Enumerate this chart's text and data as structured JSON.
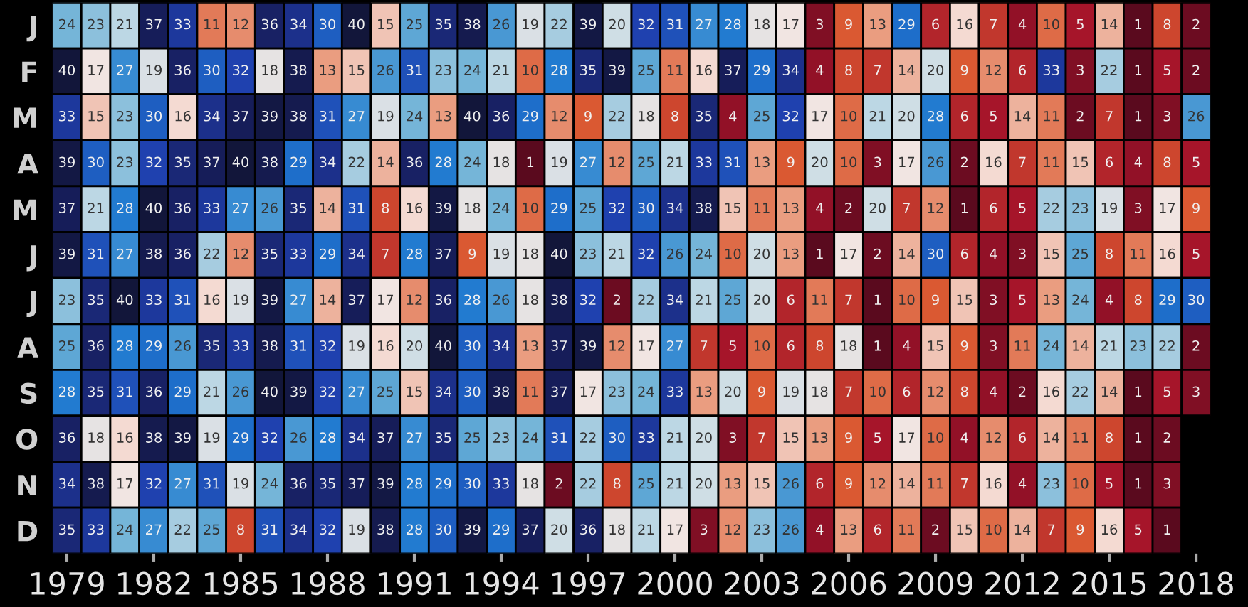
{
  "chart_data": {
    "type": "heatmap",
    "categories": [
      "1979",
      null,
      null,
      "1982",
      null,
      null,
      "1985",
      null,
      null,
      "1988",
      null,
      null,
      "1991",
      null,
      null,
      "1994",
      null,
      null,
      "1997",
      null,
      null,
      "2000",
      null,
      null,
      "2003",
      null,
      null,
      "2006",
      null,
      null,
      "2009",
      null,
      null,
      "2012",
      null,
      null,
      "2015",
      null,
      null,
      "2018"
    ],
    "y_categories": [
      "J",
      "F",
      "M",
      "A",
      "M",
      "J",
      "J",
      "A",
      "S",
      "O",
      "N",
      "D"
    ],
    "cells": [
      [
        24,
        23,
        21,
        37,
        33,
        11,
        12,
        36,
        34,
        30,
        40,
        15,
        25,
        35,
        38,
        26,
        19,
        22,
        39,
        20,
        32,
        31,
        27,
        28,
        18,
        17,
        3,
        9,
        13,
        29,
        6,
        16,
        7,
        4,
        10,
        5,
        14,
        1,
        8,
        2
      ],
      [
        40,
        17,
        27,
        19,
        36,
        30,
        32,
        18,
        38,
        13,
        15,
        26,
        31,
        23,
        24,
        21,
        10,
        28,
        35,
        39,
        25,
        11,
        16,
        37,
        29,
        34,
        4,
        8,
        7,
        14,
        20,
        9,
        12,
        6,
        33,
        3,
        22,
        1,
        5,
        2
      ],
      [
        33,
        15,
        23,
        30,
        16,
        34,
        37,
        39,
        38,
        31,
        27,
        19,
        24,
        13,
        40,
        36,
        29,
        12,
        9,
        22,
        18,
        8,
        35,
        4,
        25,
        32,
        17,
        10,
        21,
        20,
        28,
        6,
        5,
        14,
        11,
        2,
        7,
        1,
        3,
        26
      ],
      [
        39,
        30,
        23,
        32,
        35,
        37,
        40,
        38,
        29,
        34,
        22,
        14,
        36,
        28,
        24,
        18,
        1,
        19,
        27,
        12,
        25,
        21,
        33,
        31,
        13,
        9,
        20,
        10,
        3,
        17,
        26,
        2,
        16,
        7,
        11,
        15,
        6,
        4,
        8,
        5
      ],
      [
        37,
        21,
        28,
        40,
        36,
        33,
        27,
        26,
        35,
        14,
        31,
        8,
        16,
        39,
        18,
        24,
        10,
        29,
        25,
        32,
        30,
        34,
        38,
        15,
        11,
        13,
        4,
        2,
        20,
        7,
        12,
        1,
        6,
        5,
        22,
        23,
        19,
        3,
        17,
        9
      ],
      [
        39,
        31,
        27,
        38,
        36,
        22,
        12,
        35,
        33,
        29,
        34,
        7,
        28,
        37,
        9,
        19,
        18,
        40,
        23,
        21,
        32,
        26,
        24,
        10,
        20,
        13,
        1,
        17,
        2,
        14,
        30,
        6,
        4,
        3,
        15,
        25,
        8,
        11,
        16,
        5
      ],
      [
        23,
        35,
        40,
        33,
        31,
        16,
        19,
        39,
        27,
        14,
        37,
        17,
        12,
        36,
        28,
        26,
        18,
        38,
        32,
        2,
        22,
        34,
        21,
        25,
        20,
        6,
        11,
        7,
        1,
        10,
        9,
        15,
        3,
        5,
        13,
        24,
        4,
        8,
        29,
        30
      ],
      [
        25,
        36,
        28,
        29,
        26,
        35,
        33,
        38,
        31,
        32,
        19,
        16,
        20,
        40,
        30,
        34,
        13,
        37,
        39,
        12,
        17,
        27,
        7,
        5,
        10,
        6,
        8,
        18,
        1,
        4,
        15,
        9,
        3,
        11,
        24,
        14,
        21,
        23,
        22,
        2
      ],
      [
        28,
        35,
        31,
        36,
        29,
        21,
        26,
        40,
        39,
        32,
        27,
        25,
        15,
        34,
        30,
        38,
        11,
        37,
        17,
        23,
        24,
        33,
        13,
        20,
        9,
        19,
        18,
        7,
        10,
        6,
        12,
        8,
        4,
        2,
        16,
        22,
        14,
        1,
        5,
        3
      ],
      [
        36,
        18,
        16,
        38,
        39,
        19,
        29,
        32,
        26,
        28,
        34,
        37,
        27,
        35,
        25,
        23,
        24,
        31,
        22,
        30,
        33,
        21,
        20,
        3,
        7,
        15,
        13,
        9,
        5,
        17,
        10,
        4,
        12,
        6,
        14,
        11,
        8,
        1,
        2,
        null
      ],
      [
        34,
        38,
        17,
        32,
        27,
        31,
        19,
        24,
        36,
        35,
        37,
        39,
        28,
        29,
        30,
        33,
        18,
        2,
        22,
        8,
        25,
        21,
        20,
        13,
        15,
        26,
        6,
        9,
        12,
        14,
        11,
        7,
        16,
        4,
        23,
        10,
        5,
        1,
        3,
        null
      ],
      [
        35,
        33,
        24,
        27,
        22,
        25,
        8,
        31,
        34,
        32,
        19,
        38,
        28,
        30,
        39,
        29,
        37,
        20,
        36,
        18,
        21,
        17,
        3,
        12,
        23,
        26,
        4,
        13,
        6,
        11,
        2,
        15,
        10,
        14,
        7,
        9,
        16,
        5,
        1,
        null
      ]
    ],
    "data_labels": true
  }
}
